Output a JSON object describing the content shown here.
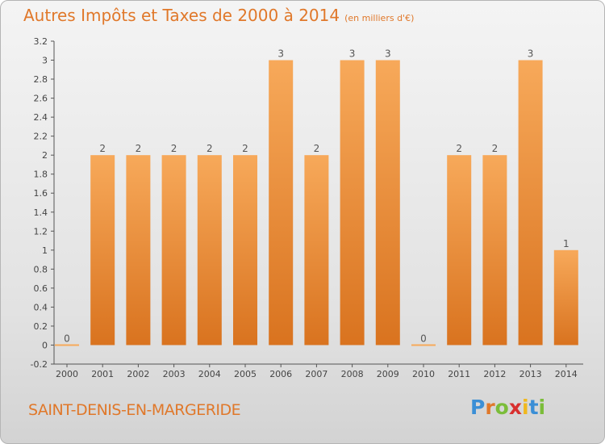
{
  "title": {
    "main": "Autres Impôts et Taxes de 2000 à 2014",
    "unit": "(en milliers d'€)"
  },
  "commune": "SAINT-DENIS-EN-MARGERIDE",
  "logo": {
    "letters": [
      "P",
      "r",
      "o",
      "x",
      "i",
      "t",
      "i"
    ],
    "colors": [
      "#3b8fd6",
      "#e0782a",
      "#7bbd3a",
      "#d8302f",
      "#f0b81e",
      "#3b8fd6",
      "#7bbd3a"
    ]
  },
  "colors": {
    "bar_light": "#f7a95a",
    "bar_dark": "#d9731f",
    "axis": "#555555",
    "grid": "#777777"
  },
  "chart_data": {
    "type": "bar",
    "categories": [
      "2000",
      "2001",
      "2002",
      "2003",
      "2004",
      "2005",
      "2006",
      "2007",
      "2008",
      "2009",
      "2010",
      "2011",
      "2012",
      "2013",
      "2014"
    ],
    "values": [
      0,
      2,
      2,
      2,
      2,
      2,
      3,
      2,
      3,
      3,
      0,
      2,
      2,
      3,
      1
    ],
    "data_labels": [
      "0",
      "2",
      "2",
      "2",
      "2",
      "2",
      "3",
      "2",
      "3",
      "3",
      "0",
      "2",
      "2",
      "3",
      "1"
    ],
    "y_ticks": [
      "-0.2",
      "0",
      "0.2",
      "0.4",
      "0.6",
      "0.8",
      "1",
      "1.2",
      "1.4",
      "1.6",
      "1.8",
      "2",
      "2.2",
      "2.4",
      "2.6",
      "2.8",
      "3",
      "3.2"
    ],
    "ylim": [
      -0.2,
      3.2
    ],
    "grid": false,
    "legend": "none"
  }
}
